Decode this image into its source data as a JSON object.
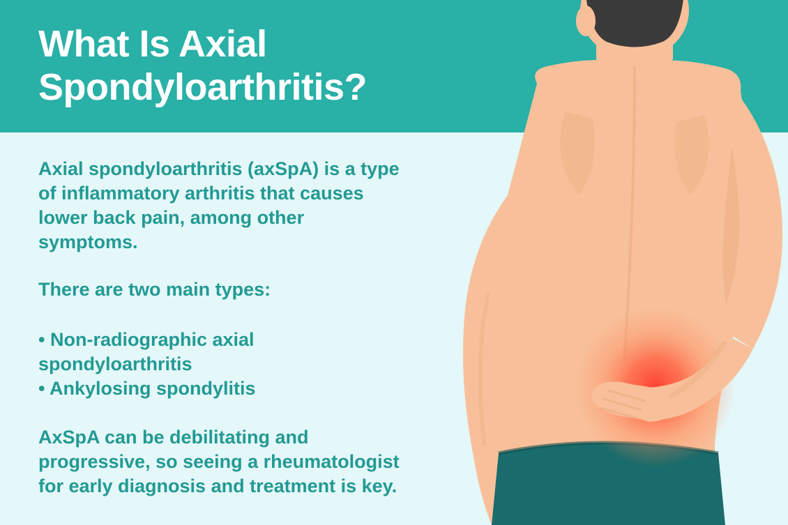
{
  "colors": {
    "header_bg": "#29b0a7",
    "body_bg": "#e4f7f9",
    "title_text": "#ffffff",
    "body_text": "#229a93",
    "skin": "#f8c09a",
    "skin_shadow": "#e8a87c",
    "hair": "#3a3a3a",
    "shorts": "#1a6b6b",
    "pain_center": "#ff3b2f",
    "pain_outer": "rgba(255,90,60,0)"
  },
  "title": "What Is Axial\nSpondyloarthritis?",
  "intro": "Axial spondyloarthritis (axSpA) is a type of inflammatory arthritis that causes lower back pain, among other symptoms.",
  "types_heading": "There are two main types:",
  "bullets": [
    "Non-radiographic axial spondyloarthritis",
    "Ankylosing spondylitis"
  ],
  "closing": "AxSpA can be debilitating and progressive, so seeing a rheumatologist for early diagnosis and treatment is key.",
  "typography": {
    "title_fontsize": 54,
    "body_fontsize": 27,
    "title_weight": 800,
    "body_weight": 700
  }
}
